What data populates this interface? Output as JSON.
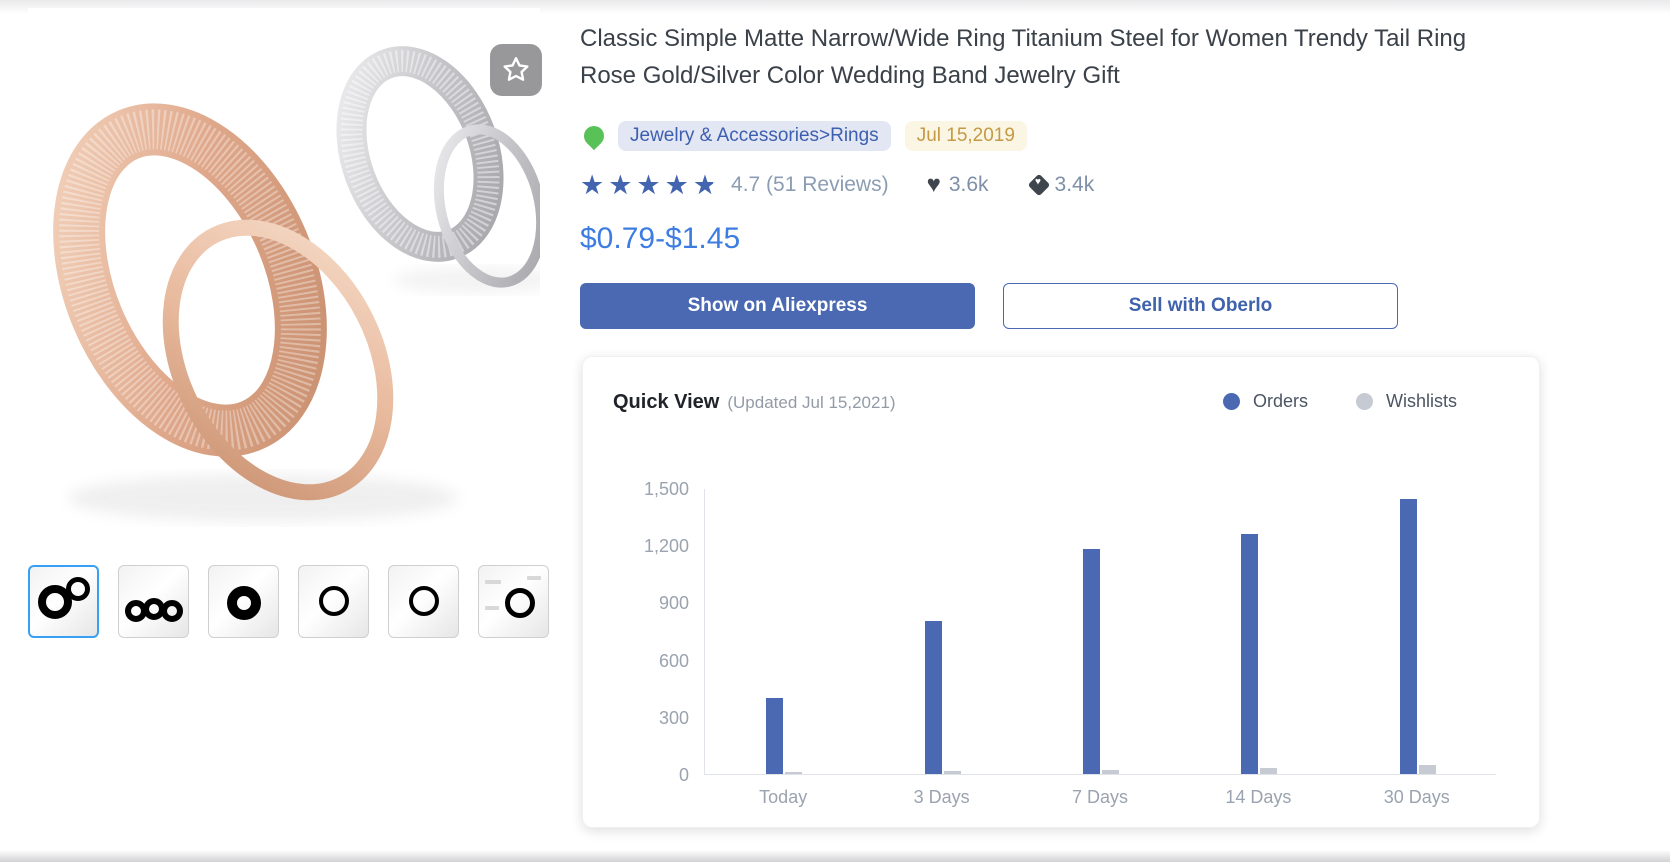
{
  "product": {
    "title": "Classic Simple Matte Narrow/Wide Ring Titanium Steel for Women Trendy Tail Ring Rose Gold/Silver Color Wedding Band Jewelry Gift",
    "category": "Jewelry & Accessories>Rings",
    "listed_date": "Jul 15,2019",
    "rating_value": 4.7,
    "rating_text": "4.7 (51 Reviews)",
    "likes_count": "3.6k",
    "tags_count": "3.4k",
    "price_range": "$0.79-$1.45"
  },
  "actions": {
    "show_on_aliexpress": "Show on Aliexpress",
    "sell_with_oberlo": "Sell with Oberlo"
  },
  "gallery": {
    "selected_index": 0,
    "thumbnails": [
      {
        "kind": "rings-pair"
      },
      {
        "kind": "rings-stacked"
      },
      {
        "kind": "rose-wide-band"
      },
      {
        "kind": "silver-thin-ring"
      },
      {
        "kind": "rose-thin-ring"
      },
      {
        "kind": "ring-diagram"
      }
    ]
  },
  "quick_view": {
    "title": "Quick View",
    "updated": "(Updated Jul 15,2021)"
  },
  "chart_data": {
    "type": "bar",
    "title": "Quick View",
    "categories": [
      "Today",
      "3 Days",
      "7 Days",
      "14 Days",
      "30 Days"
    ],
    "series": [
      {
        "name": "Orders",
        "color": "#4a69b2",
        "values": [
          400,
          800,
          1180,
          1260,
          1440
        ]
      },
      {
        "name": "Wishlists",
        "color": "#c5cad3",
        "values": [
          8,
          15,
          20,
          30,
          45
        ]
      }
    ],
    "ylim": [
      0,
      1500
    ],
    "yticks": [
      {
        "value": 0,
        "label": "0"
      },
      {
        "value": 300,
        "label": "300"
      },
      {
        "value": 600,
        "label": "600"
      },
      {
        "value": 900,
        "label": "900"
      },
      {
        "value": 1200,
        "label": "1,200"
      },
      {
        "value": 1500,
        "label": "1,500"
      }
    ],
    "grid": false,
    "legend_position": "top-right"
  },
  "colors": {
    "accent_blue": "#4a69b2",
    "price_blue": "#3d7de2",
    "category_blue": "#3c5fb0",
    "date_gold": "#c49a45",
    "flame_green": "#58c158",
    "star_blue": "#4365b0",
    "muted_gray": "#7e90a8",
    "wishlist_gray": "#c5cad3"
  }
}
